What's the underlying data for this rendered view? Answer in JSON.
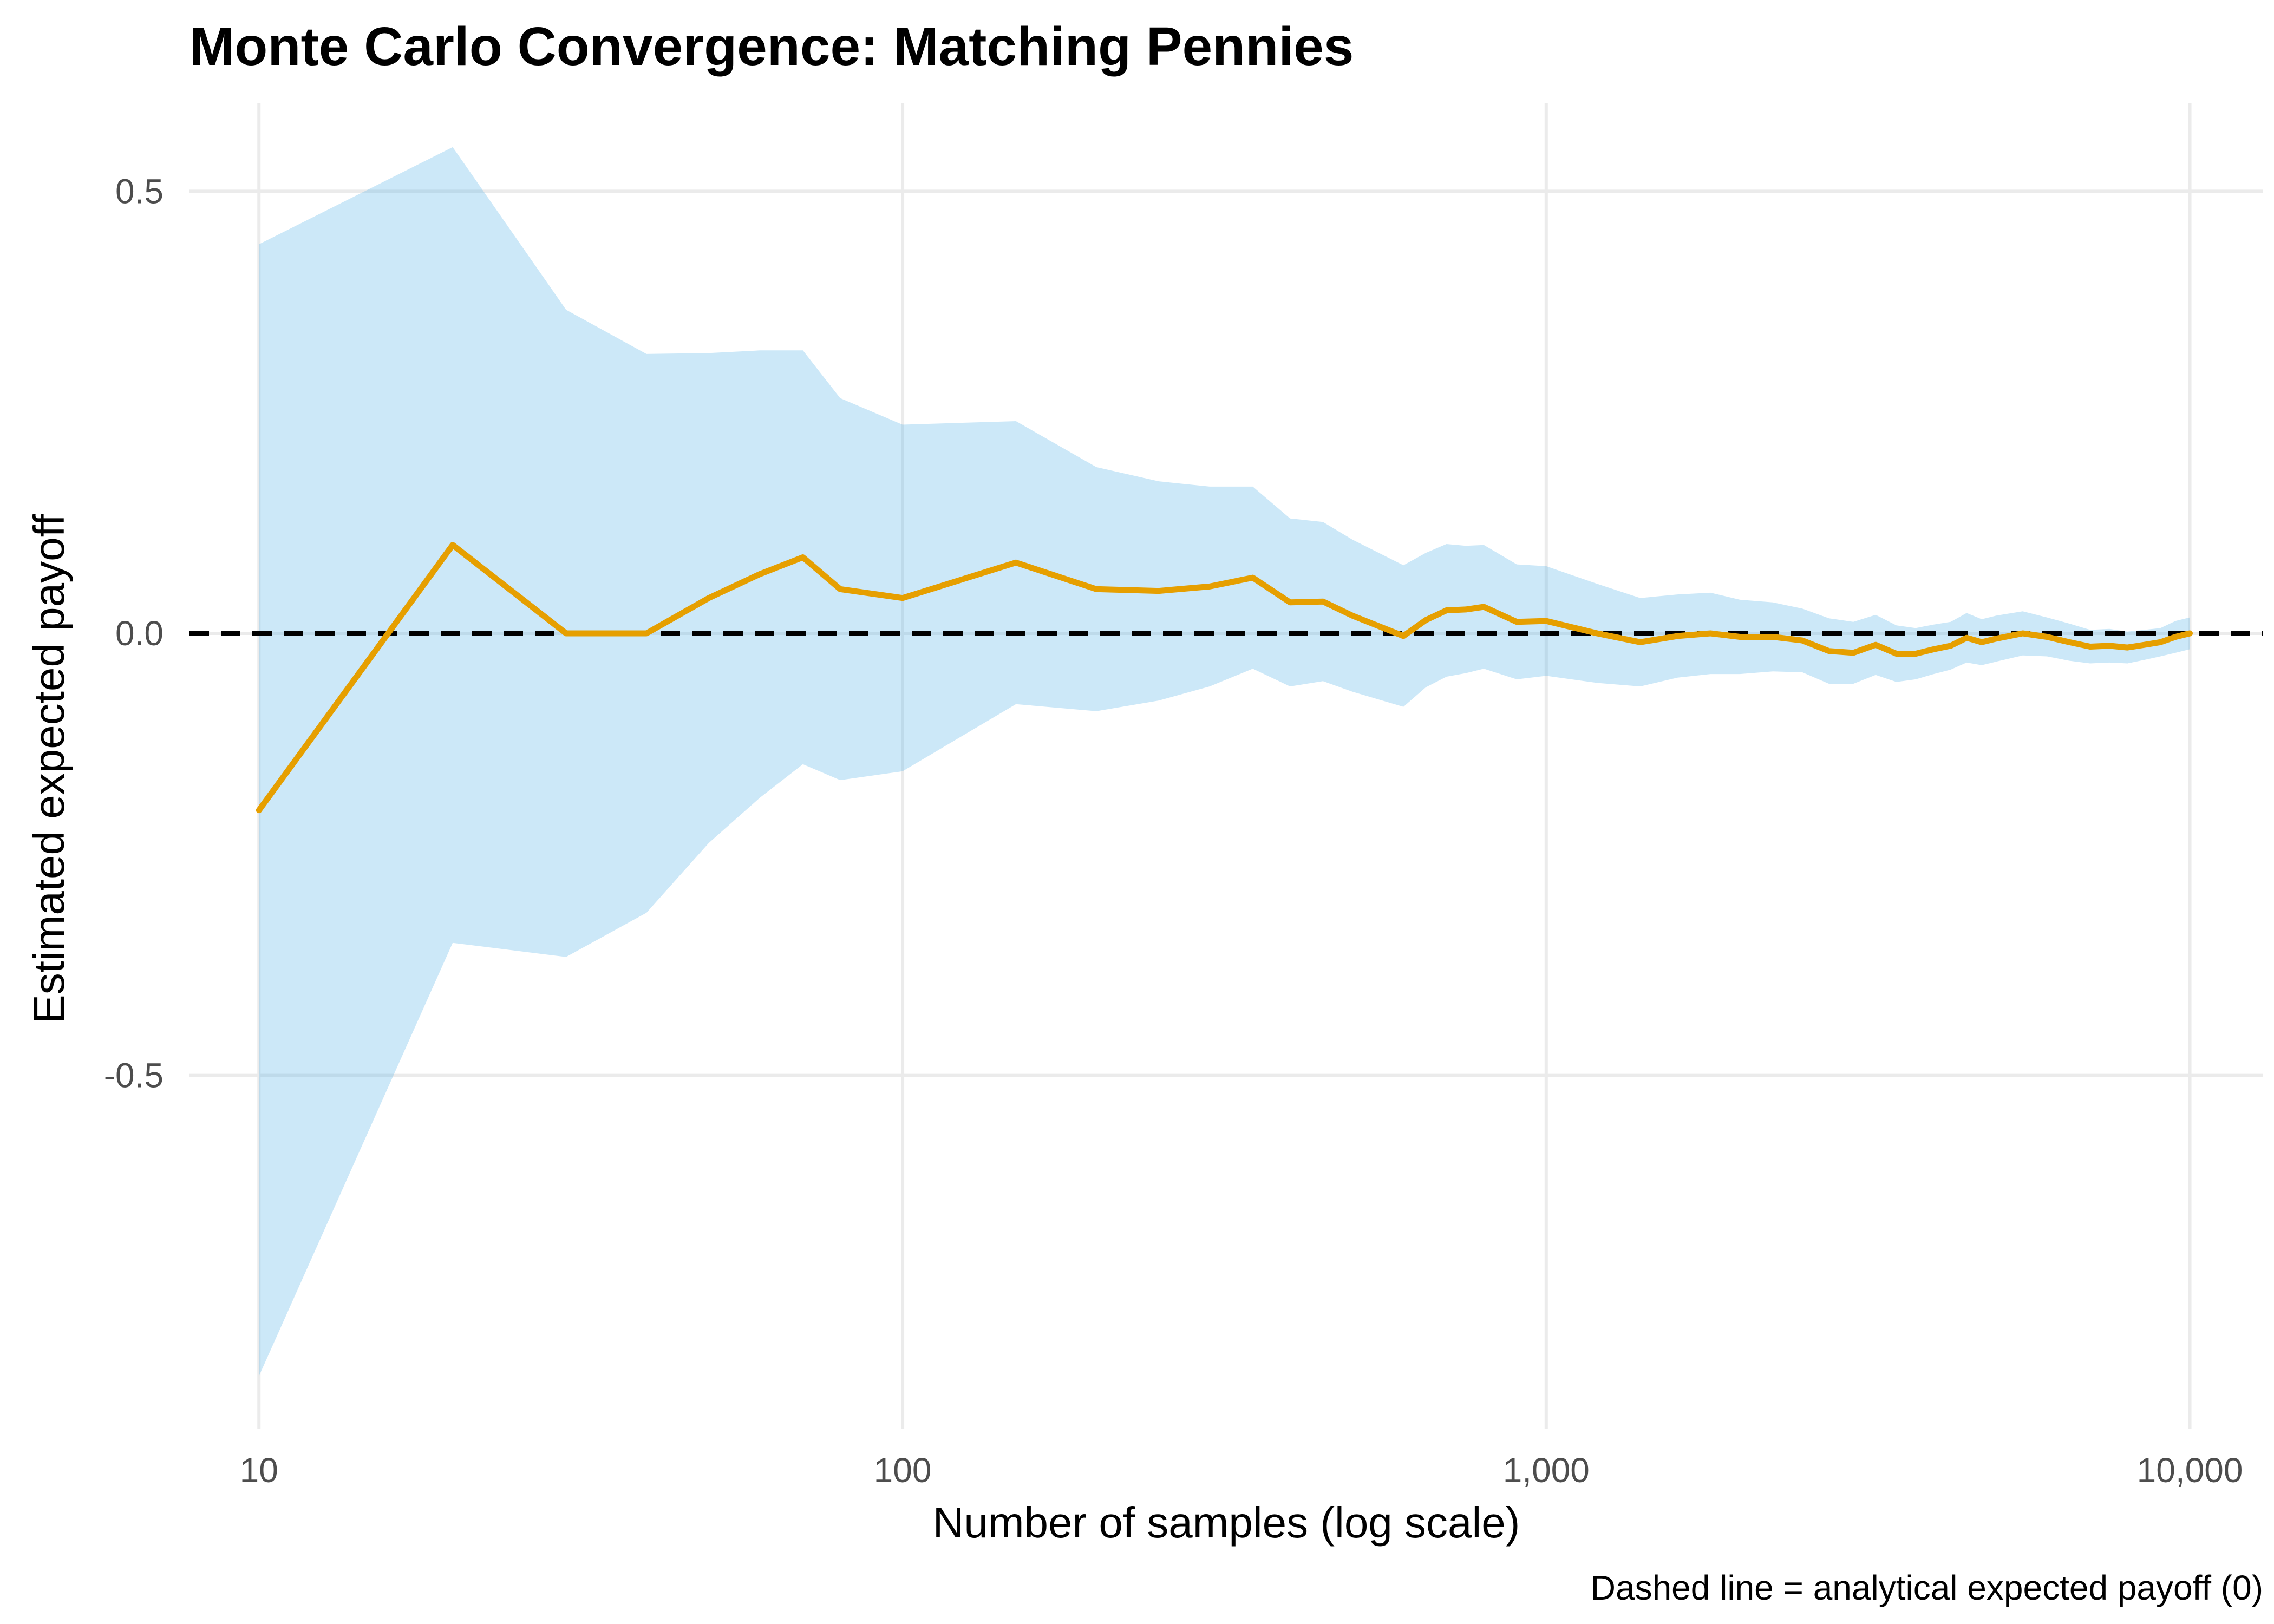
{
  "chart_data": {
    "type": "line",
    "title": "Monte Carlo Convergence: Matching Pennies",
    "xlabel": "Number of samples (log scale)",
    "ylabel": "Estimated expected payoff",
    "caption": "Dashed line = analytical expected payoff (0)",
    "x_scale": "log10",
    "xlim": [
      7.8,
      13000
    ],
    "ylim": [
      -0.9,
      0.6
    ],
    "x_ticks": [
      {
        "value": 10,
        "label": "10"
      },
      {
        "value": 100,
        "label": "100"
      },
      {
        "value": 1000,
        "label": "1,000"
      },
      {
        "value": 10000,
        "label": "10,000"
      }
    ],
    "y_ticks": [
      {
        "value": 0.5,
        "label": "0.5"
      },
      {
        "value": 0.0,
        "label": "0.0"
      },
      {
        "value": -0.5,
        "label": "-0.5"
      }
    ],
    "grid": true,
    "reference_line": {
      "y": 0,
      "style": "dashed",
      "color": "#000000"
    },
    "colors": {
      "line": "#E69F00",
      "band": "#56B4E9"
    },
    "series": [
      {
        "x": [
          10,
          20,
          30,
          40,
          50,
          60,
          70,
          80,
          100,
          150,
          200,
          250,
          300,
          350,
          400,
          450,
          500,
          600,
          650,
          700,
          750,
          800,
          900,
          1000,
          1200,
          1400,
          1600,
          1800,
          2000,
          2250,
          2500,
          2750,
          3000,
          3250,
          3500,
          3750,
          4000,
          4250,
          4500,
          4750,
          5000,
          5500,
          6000,
          6500,
          7000,
          7500,
          8000,
          8500,
          9000,
          9500,
          10000
        ],
        "y": [
          -0.2,
          0.1,
          0.0,
          0.0,
          0.04,
          0.067,
          0.086,
          0.05,
          0.04,
          0.08,
          0.05,
          0.048,
          0.053,
          0.063,
          0.035,
          0.036,
          0.02,
          -0.003,
          0.015,
          0.026,
          0.027,
          0.03,
          0.013,
          0.014,
          0.0,
          -0.01,
          -0.003,
          0.0,
          -0.004,
          -0.004,
          -0.008,
          -0.02,
          -0.022,
          -0.013,
          -0.023,
          -0.023,
          -0.018,
          -0.014,
          -0.005,
          -0.01,
          -0.006,
          0.0,
          -0.004,
          -0.01,
          -0.015,
          -0.014,
          -0.016,
          -0.013,
          -0.01,
          -0.004,
          0.0
        ],
        "lower": [
          -0.84,
          -0.35,
          -0.366,
          -0.316,
          -0.237,
          -0.186,
          -0.148,
          -0.166,
          -0.156,
          -0.08,
          -0.088,
          -0.076,
          -0.06,
          -0.04,
          -0.06,
          -0.054,
          -0.066,
          -0.083,
          -0.061,
          -0.049,
          -0.045,
          -0.04,
          -0.052,
          -0.048,
          -0.056,
          -0.06,
          -0.05,
          -0.046,
          -0.046,
          -0.043,
          -0.044,
          -0.057,
          -0.057,
          -0.047,
          -0.055,
          -0.052,
          -0.046,
          -0.041,
          -0.033,
          -0.036,
          -0.032,
          -0.025,
          -0.026,
          -0.031,
          -0.034,
          -0.033,
          -0.034,
          -0.03,
          -0.026,
          -0.022,
          -0.018
        ],
        "upper": [
          0.44,
          0.55,
          0.366,
          0.316,
          0.317,
          0.32,
          0.32,
          0.266,
          0.236,
          0.24,
          0.188,
          0.172,
          0.166,
          0.166,
          0.13,
          0.126,
          0.106,
          0.077,
          0.091,
          0.101,
          0.099,
          0.1,
          0.078,
          0.076,
          0.056,
          0.04,
          0.044,
          0.046,
          0.038,
          0.035,
          0.028,
          0.017,
          0.013,
          0.021,
          0.009,
          0.006,
          0.01,
          0.013,
          0.023,
          0.016,
          0.02,
          0.025,
          0.018,
          0.011,
          0.004,
          0.005,
          0.002,
          0.004,
          0.006,
          0.014,
          0.018
        ]
      }
    ]
  }
}
